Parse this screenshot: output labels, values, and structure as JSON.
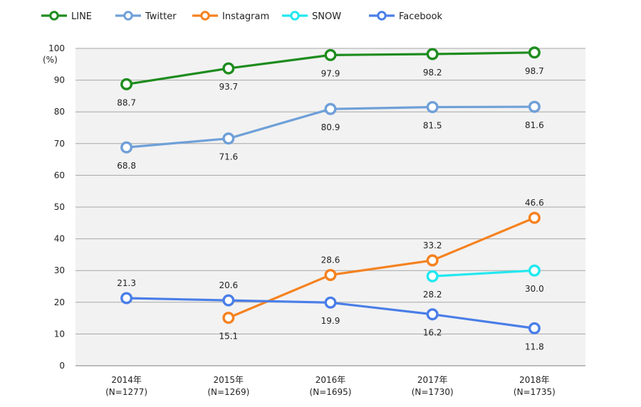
{
  "chart_data": {
    "type": "line",
    "unit_label": "(%)",
    "ylim": [
      0,
      100
    ],
    "y_ticks": [
      0,
      10,
      20,
      30,
      40,
      50,
      60,
      70,
      80,
      90,
      100
    ],
    "grid": true,
    "legend_position": "top",
    "categories": [
      {
        "year": "2014年",
        "n": "(N=1277)"
      },
      {
        "year": "2015年",
        "n": "(N=1269)"
      },
      {
        "year": "2016年",
        "n": "(N=1695)"
      },
      {
        "year": "2017年",
        "n": "(N=1730)"
      },
      {
        "year": "2018年",
        "n": "(N=1735)"
      }
    ],
    "series": [
      {
        "name": "LINE",
        "color": "#1e8c1e",
        "values": [
          88.7,
          93.7,
          97.9,
          98.2,
          98.7
        ],
        "labels": [
          "88.7",
          "93.7",
          "97.9",
          "98.2",
          "98.7"
        ],
        "label_pos": "below"
      },
      {
        "name": "Twitter",
        "color": "#6fa0d8",
        "values": [
          68.8,
          71.6,
          80.9,
          81.5,
          81.6
        ],
        "labels": [
          "68.8",
          "71.6",
          "80.9",
          "81.5",
          "81.6"
        ],
        "label_pos": "below"
      },
      {
        "name": "Instagram",
        "color": "#f5821f",
        "values": [
          null,
          15.1,
          28.6,
          33.2,
          46.6
        ],
        "labels": [
          null,
          "15.1",
          "28.6",
          "33.2",
          "46.6"
        ],
        "label_pos": [
          "below",
          "below",
          "above",
          "above",
          "above"
        ]
      },
      {
        "name": "SNOW",
        "color": "#22e8f0",
        "values": [
          null,
          null,
          null,
          28.2,
          30.0
        ],
        "labels": [
          null,
          null,
          null,
          "28.2",
          "30.0"
        ],
        "label_pos": "below"
      },
      {
        "name": "Facebook",
        "color": "#4a7ee8",
        "values": [
          21.3,
          20.6,
          19.9,
          16.2,
          11.8
        ],
        "labels": [
          "21.3",
          "20.6",
          "19.9",
          "16.2",
          "11.8"
        ],
        "label_pos": [
          "above",
          "above",
          "below",
          "below",
          "below"
        ]
      }
    ]
  }
}
